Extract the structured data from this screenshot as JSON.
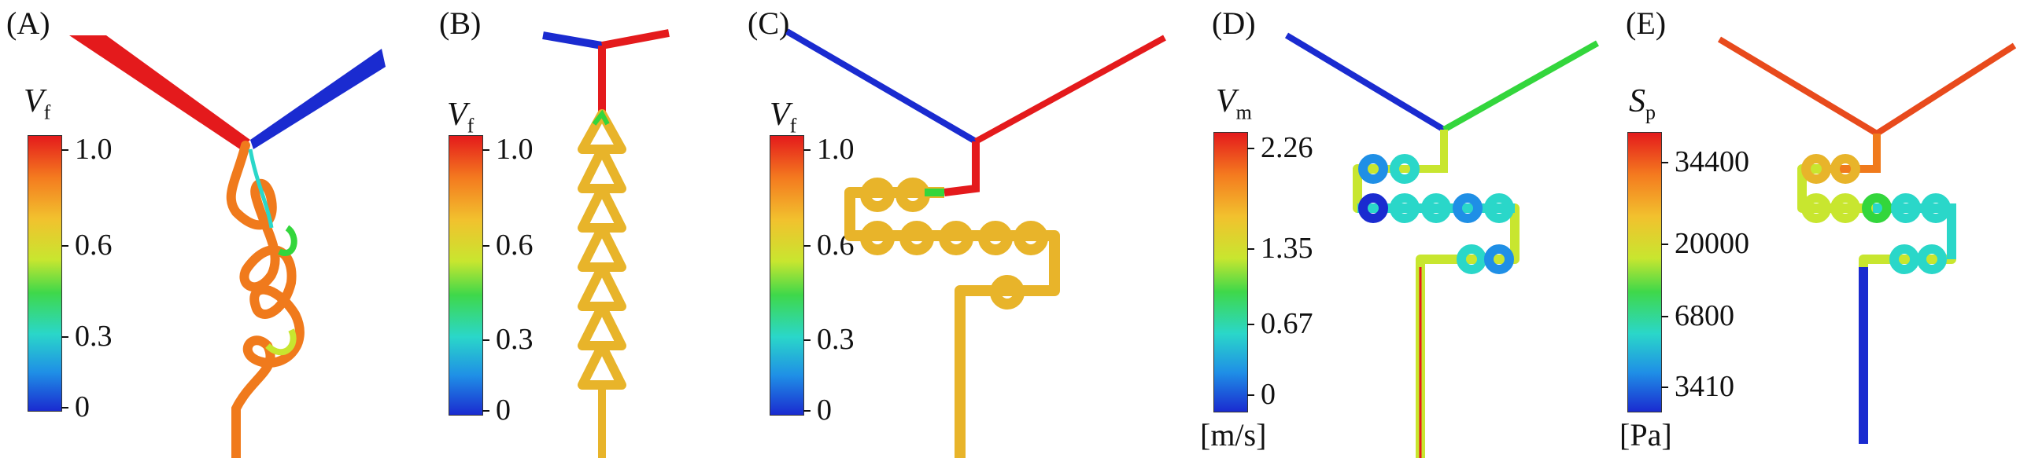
{
  "panels": [
    {
      "label": "(A)",
      "colorbar": {
        "symbol": "V",
        "subscript": "f",
        "unit": "",
        "ticks": [
          "1.0",
          "0.6",
          "0.3",
          "0"
        ]
      }
    },
    {
      "label": "(B)",
      "colorbar": {
        "symbol": "V",
        "subscript": "f",
        "unit": "",
        "ticks": [
          "1.0",
          "0.6",
          "0.3",
          "0"
        ]
      }
    },
    {
      "label": "(C)",
      "colorbar": {
        "symbol": "V",
        "subscript": "f",
        "unit": "",
        "ticks": [
          "1.0",
          "0.6",
          "0.3",
          "0"
        ]
      }
    },
    {
      "label": "(D)",
      "colorbar": {
        "symbol": "V",
        "subscript": "m",
        "unit": "[m/s]",
        "ticks": [
          "2.26",
          "1.35",
          "0.67",
          "0"
        ]
      }
    },
    {
      "label": "(E)",
      "colorbar": {
        "symbol": "S",
        "subscript": "p",
        "unit": "[Pa]",
        "ticks": [
          "34400",
          "20000",
          "6800",
          "3410"
        ]
      }
    }
  ],
  "colors": {
    "red": "#e41a1c",
    "blue": "#1a2bd0",
    "yellow": "#e8b42a",
    "green": "#33d63c",
    "cyan": "#2ad7c9",
    "orange": "#f07a1c"
  }
}
